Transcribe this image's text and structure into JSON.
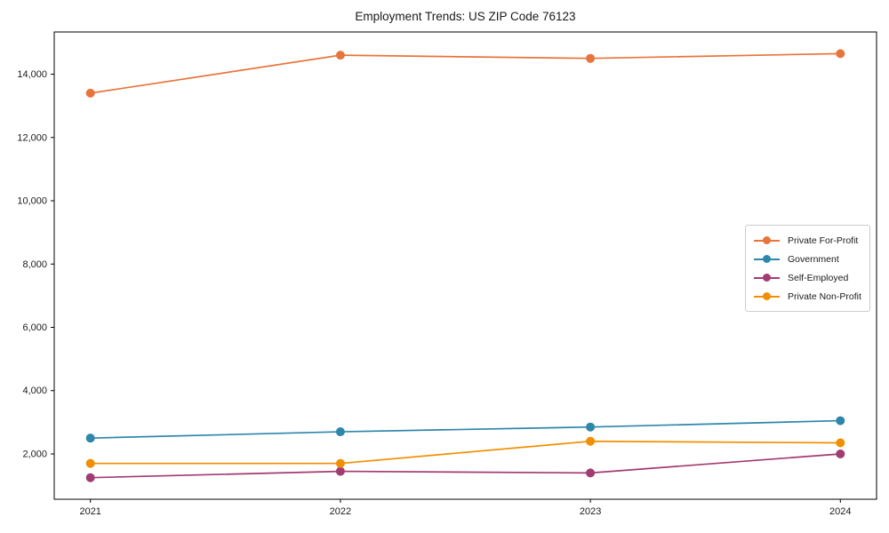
{
  "chart_data": {
    "type": "line",
    "title": "Employment Trends: US ZIP Code 76123",
    "x_categories": [
      "2021",
      "2022",
      "2023",
      "2024"
    ],
    "series": [
      {
        "name": "Private For-Profit",
        "color": "#e8743b",
        "values": [
          13400,
          14600,
          14500,
          14650
        ]
      },
      {
        "name": "Government",
        "color": "#2e86ab",
        "values": [
          2500,
          2700,
          2850,
          3050
        ]
      },
      {
        "name": "Self-Employed",
        "color": "#a23b72",
        "values": [
          1250,
          1450,
          1400,
          2000
        ]
      },
      {
        "name": "Private Non-Profit",
        "color": "#f18f01",
        "values": [
          1700,
          1700,
          2400,
          2350
        ]
      }
    ],
    "yticks": [
      2000,
      4000,
      6000,
      8000,
      10000,
      12000,
      14000
    ],
    "ylim": [
      568,
      15334
    ],
    "xlabel": "",
    "ylabel": "",
    "grid": false,
    "legend_position": "center-right",
    "background_color": "#ffffff",
    "axis_color": "#000000",
    "text_color": "#1a1a1a"
  }
}
